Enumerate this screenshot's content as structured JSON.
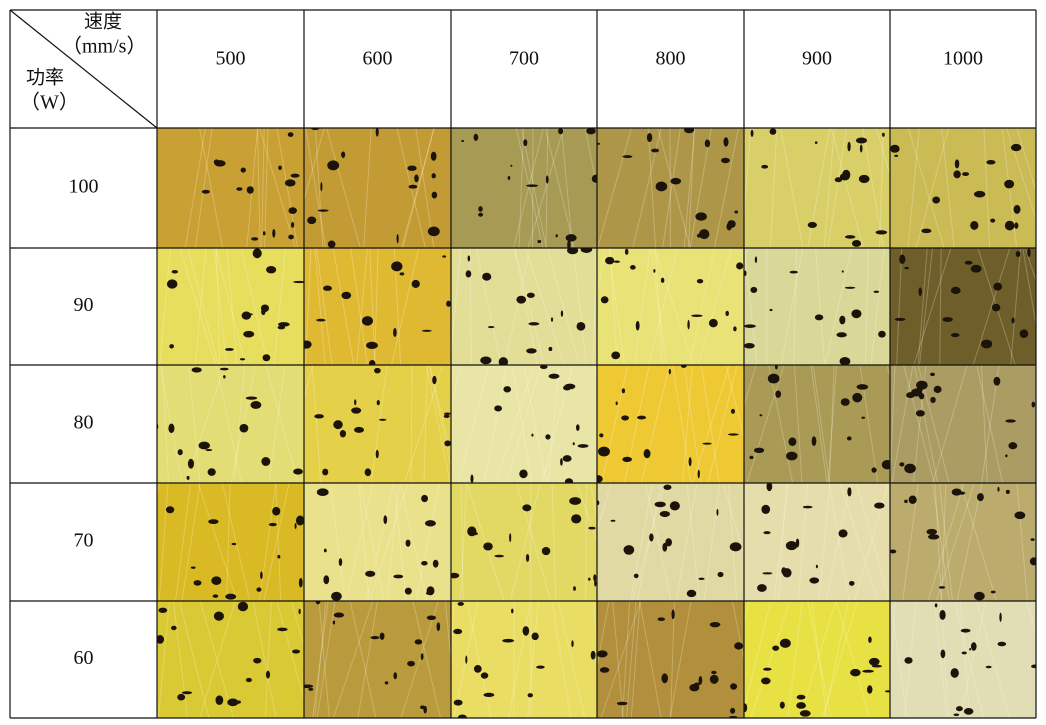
{
  "table": {
    "corner": {
      "column_header": "速度",
      "column_unit": "（mm/s）",
      "row_header": "功率",
      "row_unit": "（W）"
    },
    "columns": [
      "500",
      "600",
      "700",
      "800",
      "900",
      "1000"
    ],
    "rows": [
      "100",
      "90",
      "80",
      "70",
      "60"
    ]
  }
}
